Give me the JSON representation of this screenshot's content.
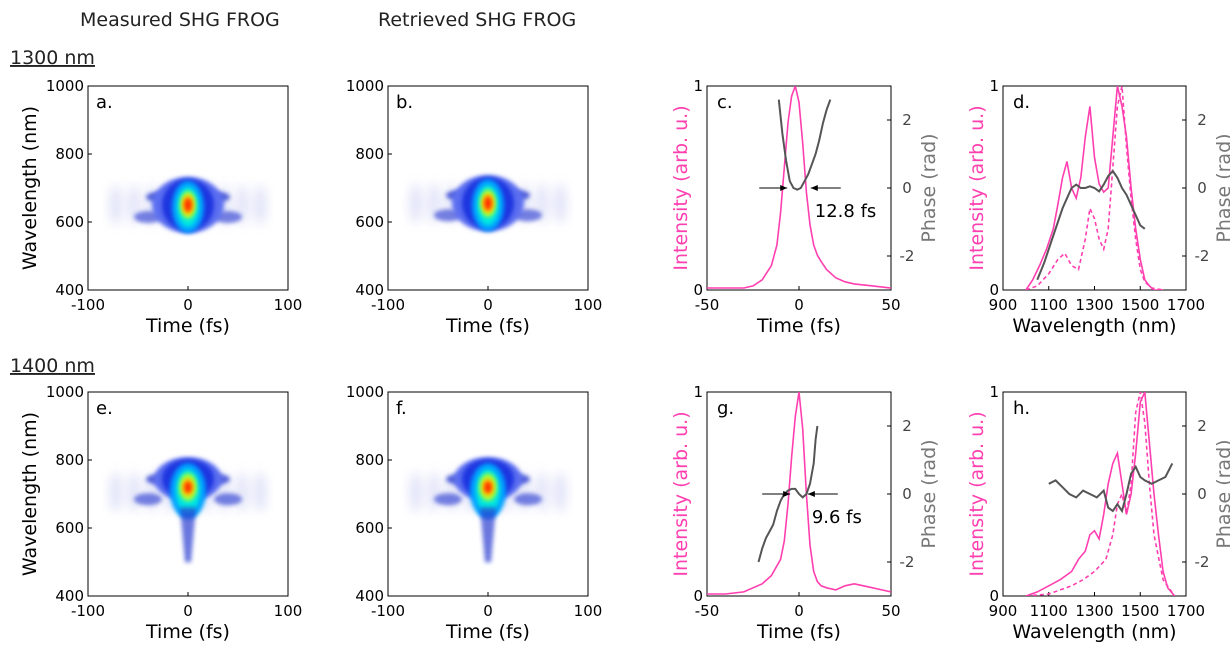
{
  "headers": {
    "measured": "Measured SHG FROG",
    "retrieved": "Retrieved SHG FROG",
    "row1": "1300 nm",
    "row2": "1400 nm"
  },
  "colors": {
    "intensity": "#ff3fb0",
    "phase": "#555555",
    "axis": "#000000"
  },
  "chart_data": [
    {
      "id": "a",
      "type": "heatmap",
      "panel_label": "a.",
      "xlabel": "Time (fs)",
      "ylabel": "Wavelength (nm)",
      "xlim": [
        -100,
        100
      ],
      "ylim": [
        400,
        1000
      ],
      "xticks": [
        "-100",
        "0",
        "100"
      ],
      "yticks": [
        "400",
        "600",
        "800",
        "1000"
      ],
      "peak": {
        "t": 0,
        "wl": 650
      },
      "colormap": "jet"
    },
    {
      "id": "b",
      "type": "heatmap",
      "panel_label": "b.",
      "xlabel": "Time (fs)",
      "ylabel": "",
      "xlim": [
        -100,
        100
      ],
      "ylim": [
        400,
        1000
      ],
      "xticks": [
        "-100",
        "0",
        "100"
      ],
      "yticks": [
        "400",
        "600",
        "800",
        "1000"
      ],
      "peak": {
        "t": 0,
        "wl": 655
      },
      "colormap": "jet"
    },
    {
      "id": "c",
      "type": "line",
      "panel_label": "c.",
      "xlabel": "Time (fs)",
      "ylabel": "Intensity (arb. u.)",
      "y2label": "Phase (rad)",
      "xlim": [
        -50,
        50
      ],
      "ylim": [
        0,
        1
      ],
      "y2lim": [
        -3,
        3
      ],
      "xticks": [
        "-50",
        "0",
        "50"
      ],
      "yticks": [
        "0",
        "1"
      ],
      "y2ticks": [
        "-2",
        "0",
        "2"
      ],
      "series": [
        {
          "axis": "y1",
          "style": "solid",
          "x": [
            -50,
            -40,
            -30,
            -25,
            -20,
            -15,
            -12,
            -10,
            -8,
            -6,
            -4,
            -2,
            0,
            2,
            4,
            6,
            8,
            10,
            12,
            15,
            20,
            25,
            30,
            40,
            50
          ],
          "y": [
            0.01,
            0.01,
            0.01,
            0.02,
            0.05,
            0.12,
            0.22,
            0.38,
            0.6,
            0.82,
            0.95,
            1.0,
            0.92,
            0.72,
            0.48,
            0.32,
            0.22,
            0.17,
            0.14,
            0.1,
            0.06,
            0.04,
            0.03,
            0.02,
            0.01
          ]
        },
        {
          "axis": "y2",
          "style": "solid",
          "x": [
            -11,
            -9,
            -7,
            -5,
            -3,
            -1,
            1,
            3,
            5,
            7,
            9,
            11,
            13,
            15,
            17
          ],
          "y": [
            2.6,
            1.6,
            0.8,
            0.2,
            0.0,
            -0.05,
            0.0,
            0.2,
            0.4,
            0.7,
            1.0,
            1.4,
            1.9,
            2.3,
            2.6
          ]
        }
      ],
      "fwhm": {
        "label": "12.8 fs",
        "t1": -6.4,
        "t2": 6.4,
        "level": 0.5
      }
    },
    {
      "id": "d",
      "type": "line",
      "panel_label": "d.",
      "xlabel": "Wavelength (nm)",
      "ylabel": "Intensity (arb. u.)",
      "y2label": "Phase (rad)",
      "xlim": [
        900,
        1700
      ],
      "ylim": [
        0,
        1
      ],
      "y2lim": [
        -3,
        3
      ],
      "xticks": [
        "900",
        "1100",
        "1300",
        "1500",
        "1700"
      ],
      "yticks": [
        "0",
        "1"
      ],
      "y2ticks": [
        "-2",
        "0",
        "2"
      ],
      "series": [
        {
          "axis": "y1",
          "style": "solid",
          "x": [
            1000,
            1030,
            1060,
            1090,
            1120,
            1140,
            1160,
            1180,
            1200,
            1220,
            1240,
            1260,
            1280,
            1300,
            1320,
            1340,
            1360,
            1380,
            1400,
            1420,
            1440,
            1460,
            1480,
            1500,
            1520,
            1540,
            1560,
            1600
          ],
          "y": [
            0.0,
            0.05,
            0.12,
            0.2,
            0.3,
            0.42,
            0.55,
            0.63,
            0.5,
            0.45,
            0.55,
            0.75,
            0.9,
            0.65,
            0.52,
            0.48,
            0.5,
            0.75,
            1.0,
            0.9,
            0.75,
            0.5,
            0.3,
            0.15,
            0.05,
            0.02,
            0.0,
            0.0
          ]
        },
        {
          "axis": "y1",
          "style": "dashed",
          "x": [
            1000,
            1050,
            1100,
            1140,
            1170,
            1200,
            1230,
            1260,
            1280,
            1300,
            1320,
            1340,
            1360,
            1380,
            1400,
            1420,
            1440,
            1460,
            1480,
            1500,
            1520,
            1550,
            1600
          ],
          "y": [
            0.0,
            0.02,
            0.08,
            0.15,
            0.18,
            0.12,
            0.1,
            0.25,
            0.4,
            0.35,
            0.25,
            0.2,
            0.3,
            0.6,
            0.9,
            1.0,
            0.7,
            0.45,
            0.25,
            0.1,
            0.04,
            0.01,
            0.0
          ]
        },
        {
          "axis": "y2",
          "style": "solid",
          "x": [
            1050,
            1080,
            1110,
            1140,
            1160,
            1180,
            1200,
            1220,
            1240,
            1260,
            1280,
            1300,
            1320,
            1340,
            1360,
            1380,
            1400,
            1420,
            1440,
            1460,
            1480,
            1500,
            1520
          ],
          "y": [
            -2.7,
            -2.2,
            -1.6,
            -1.0,
            -0.6,
            -0.3,
            0.0,
            0.1,
            0.0,
            0.0,
            0.05,
            0.0,
            -0.1,
            0.1,
            0.35,
            0.5,
            0.3,
            0.0,
            -0.2,
            -0.5,
            -0.8,
            -1.1,
            -1.2
          ]
        }
      ]
    },
    {
      "id": "e",
      "type": "heatmap",
      "panel_label": "e.",
      "xlabel": "Time (fs)",
      "ylabel": "Wavelength (nm)",
      "xlim": [
        -100,
        100
      ],
      "ylim": [
        400,
        1000
      ],
      "xticks": [
        "-100",
        "0",
        "100"
      ],
      "yticks": [
        "400",
        "600",
        "800",
        "1000"
      ],
      "peak": {
        "t": 0,
        "wl": 720
      },
      "colormap": "jet"
    },
    {
      "id": "f",
      "type": "heatmap",
      "panel_label": "f.",
      "xlabel": "Time (fs)",
      "ylabel": "",
      "xlim": [
        -100,
        100
      ],
      "ylim": [
        400,
        1000
      ],
      "xticks": [
        "-100",
        "0",
        "100"
      ],
      "yticks": [
        "400",
        "600",
        "800",
        "1000"
      ],
      "peak": {
        "t": 0,
        "wl": 720
      },
      "colormap": "jet"
    },
    {
      "id": "g",
      "type": "line",
      "panel_label": "g.",
      "xlabel": "Time (fs)",
      "ylabel": "Intensity (arb. u.)",
      "y2label": "Phase (rad)",
      "xlim": [
        -50,
        50
      ],
      "ylim": [
        0,
        1
      ],
      "y2lim": [
        -3,
        3
      ],
      "xticks": [
        "-50",
        "0",
        "50"
      ],
      "yticks": [
        "0",
        "1"
      ],
      "y2ticks": [
        "-2",
        "0",
        "2"
      ],
      "series": [
        {
          "axis": "y1",
          "style": "solid",
          "x": [
            -50,
            -40,
            -30,
            -20,
            -15,
            -10,
            -8,
            -6,
            -4,
            -2,
            0,
            2,
            4,
            6,
            8,
            10,
            12,
            15,
            20,
            25,
            30,
            35,
            40,
            45,
            50
          ],
          "y": [
            0.01,
            0.01,
            0.02,
            0.06,
            0.1,
            0.18,
            0.27,
            0.45,
            0.68,
            0.88,
            1.0,
            0.82,
            0.5,
            0.25,
            0.12,
            0.07,
            0.05,
            0.04,
            0.03,
            0.05,
            0.06,
            0.05,
            0.04,
            0.03,
            0.02
          ]
        },
        {
          "axis": "y2",
          "style": "solid",
          "x": [
            -22,
            -20,
            -18,
            -16,
            -14,
            -12,
            -10,
            -8,
            -6,
            -4,
            -2,
            0,
            2,
            4,
            6,
            8,
            9,
            10
          ],
          "y": [
            -2.0,
            -1.6,
            -1.3,
            -1.1,
            -0.9,
            -0.5,
            -0.2,
            0.0,
            0.1,
            0.15,
            0.15,
            0.0,
            -0.1,
            0.0,
            0.3,
            0.9,
            1.6,
            2.0
          ]
        }
      ],
      "fwhm": {
        "label": "9.6 fs",
        "t1": -4.8,
        "t2": 4.8,
        "level": 0.5
      }
    },
    {
      "id": "h",
      "type": "line",
      "panel_label": "h.",
      "xlabel": "Wavelength (nm)",
      "ylabel": "Intensity (arb. u.)",
      "y2label": "Phase (rad)",
      "xlim": [
        900,
        1700
      ],
      "ylim": [
        0,
        1
      ],
      "y2lim": [
        -3,
        3
      ],
      "xticks": [
        "900",
        "1100",
        "1300",
        "1500",
        "1700"
      ],
      "yticks": [
        "0",
        "1"
      ],
      "y2ticks": [
        "-2",
        "0",
        "2"
      ],
      "series": [
        {
          "axis": "y1",
          "style": "solid",
          "x": [
            1000,
            1050,
            1100,
            1150,
            1200,
            1230,
            1260,
            1280,
            1300,
            1320,
            1340,
            1360,
            1380,
            1400,
            1420,
            1440,
            1460,
            1480,
            1500,
            1520,
            1540,
            1560,
            1580,
            1600,
            1620,
            1650
          ],
          "y": [
            0.0,
            0.02,
            0.05,
            0.08,
            0.12,
            0.18,
            0.22,
            0.3,
            0.32,
            0.28,
            0.4,
            0.55,
            0.65,
            0.7,
            0.55,
            0.4,
            0.5,
            0.7,
            0.95,
            1.0,
            0.75,
            0.5,
            0.3,
            0.12,
            0.04,
            0.0
          ]
        },
        {
          "axis": "y1",
          "style": "dashed",
          "x": [
            1000,
            1100,
            1200,
            1250,
            1300,
            1350,
            1380,
            1400,
            1420,
            1440,
            1460,
            1480,
            1500,
            1520,
            1540,
            1560,
            1600,
            1650
          ],
          "y": [
            0.0,
            0.01,
            0.05,
            0.08,
            0.12,
            0.18,
            0.3,
            0.45,
            0.5,
            0.4,
            0.55,
            0.9,
            1.0,
            0.85,
            0.55,
            0.3,
            0.08,
            0.0
          ]
        },
        {
          "axis": "y2",
          "style": "solid",
          "x": [
            1100,
            1130,
            1160,
            1190,
            1220,
            1250,
            1280,
            1310,
            1340,
            1360,
            1380,
            1400,
            1420,
            1440,
            1460,
            1480,
            1500,
            1520,
            1550,
            1580,
            1610,
            1640
          ],
          "y": [
            0.3,
            0.4,
            0.2,
            0.0,
            -0.1,
            0.1,
            0.0,
            -0.1,
            0.1,
            -0.4,
            -0.5,
            -0.3,
            -0.5,
            0.0,
            0.6,
            0.8,
            0.5,
            0.4,
            0.3,
            0.4,
            0.5,
            0.9
          ]
        }
      ]
    }
  ]
}
